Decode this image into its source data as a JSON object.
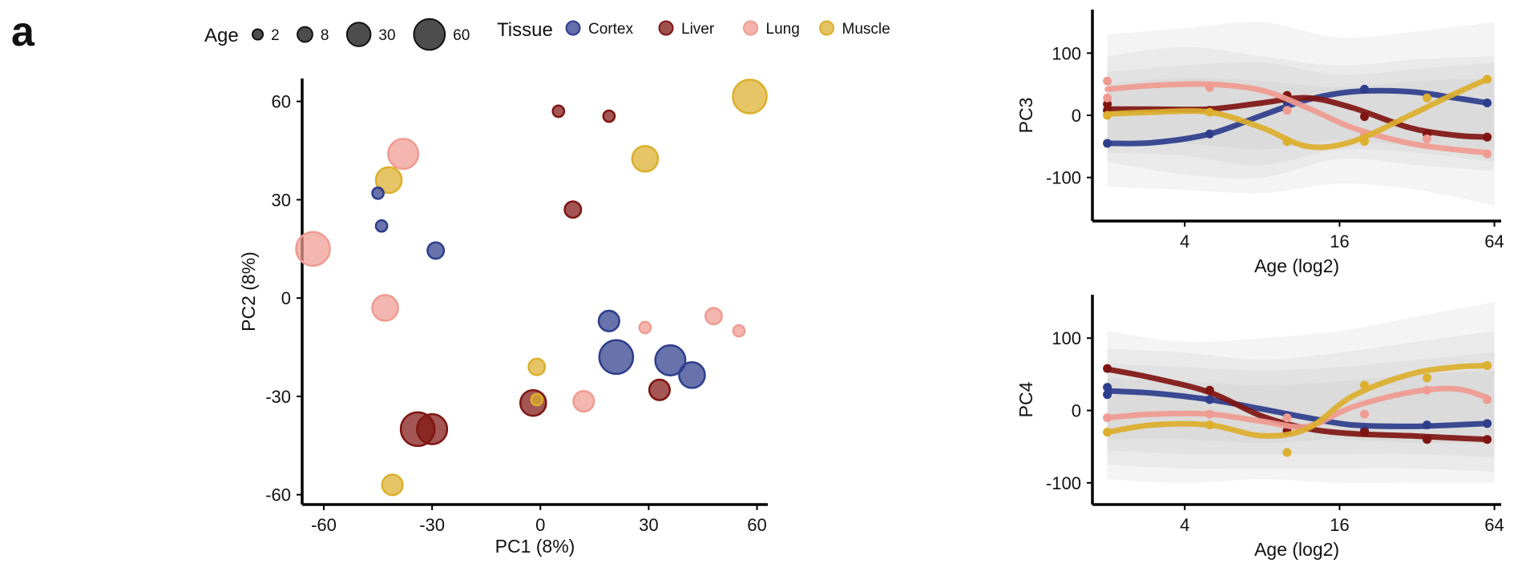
{
  "panel_label": "a",
  "legend": {
    "age_title": "Age",
    "age_sizes": [
      {
        "label": "2",
        "value": 2
      },
      {
        "label": "8",
        "value": 8
      },
      {
        "label": "30",
        "value": 30
      },
      {
        "label": "60",
        "value": 60
      }
    ],
    "tissue_title": "Tissue",
    "tissues": [
      {
        "name": "Cortex",
        "color": "#2e3d8c"
      },
      {
        "name": "Liver",
        "color": "#7f1512"
      },
      {
        "name": "Lung",
        "color": "#f09b91"
      },
      {
        "name": "Muscle",
        "color": "#dcaf2c"
      }
    ]
  },
  "chart_data": [
    {
      "type": "scatter",
      "xlabel": "PC1 (8%)",
      "ylabel": "PC2 (8%)",
      "xlim": [
        -66,
        63
      ],
      "ylim": [
        -63,
        67
      ],
      "xticks": [
        -60,
        -30,
        0,
        30,
        60
      ],
      "yticks": [
        -60,
        -30,
        0,
        30,
        60
      ],
      "grid": false,
      "legend_position": "top",
      "points": [
        {
          "tissue": "Cortex",
          "age": 2,
          "x": -45,
          "y": 32
        },
        {
          "tissue": "Cortex",
          "age": 2,
          "x": -44,
          "y": 22
        },
        {
          "tissue": "Cortex",
          "age": 8,
          "x": -29,
          "y": 14.5
        },
        {
          "tissue": "Cortex",
          "age": 16,
          "x": 19,
          "y": -7
        },
        {
          "tissue": "Cortex",
          "age": 60,
          "x": 21,
          "y": -18
        },
        {
          "tissue": "Cortex",
          "age": 45,
          "x": 36,
          "y": -19
        },
        {
          "tissue": "Cortex",
          "age": 30,
          "x": 42,
          "y": -23.5
        },
        {
          "tissue": "Liver",
          "age": 2,
          "x": 5,
          "y": 57
        },
        {
          "tissue": "Liver",
          "age": 2,
          "x": 19,
          "y": 55.5
        },
        {
          "tissue": "Liver",
          "age": 8,
          "x": 9,
          "y": 27
        },
        {
          "tissue": "Liver",
          "age": 16,
          "x": 33,
          "y": -28
        },
        {
          "tissue": "Liver",
          "age": 30,
          "x": -2,
          "y": -32
        },
        {
          "tissue": "Liver",
          "age": 60,
          "x": -34,
          "y": -40
        },
        {
          "tissue": "Liver",
          "age": 45,
          "x": -30,
          "y": -40
        },
        {
          "tissue": "Lung",
          "age": 45,
          "x": -38,
          "y": 44
        },
        {
          "tissue": "Lung",
          "age": 60,
          "x": -63,
          "y": 15
        },
        {
          "tissue": "Lung",
          "age": 30,
          "x": -43,
          "y": -3
        },
        {
          "tissue": "Lung",
          "age": 2,
          "x": 29,
          "y": -9
        },
        {
          "tissue": "Lung",
          "age": 8,
          "x": 48,
          "y": -5.5
        },
        {
          "tissue": "Lung",
          "age": 2,
          "x": 55,
          "y": -10
        },
        {
          "tissue": "Lung",
          "age": 16,
          "x": 12,
          "y": -31.5
        },
        {
          "tissue": "Muscle",
          "age": 60,
          "x": 58,
          "y": 61.5
        },
        {
          "tissue": "Muscle",
          "age": 30,
          "x": 29,
          "y": 42.5
        },
        {
          "tissue": "Muscle",
          "age": 30,
          "x": -42,
          "y": 36
        },
        {
          "tissue": "Muscle",
          "age": 8,
          "x": -1,
          "y": -21
        },
        {
          "tissue": "Muscle",
          "age": 2,
          "x": -1,
          "y": -31
        },
        {
          "tissue": "Muscle",
          "age": 16,
          "x": -41,
          "y": -57
        }
      ]
    },
    {
      "type": "line",
      "xlabel": "Age (log2)",
      "ylabel": "PC3",
      "x_scale": "log2",
      "xlim": [
        1.75,
        68
      ],
      "ylim": [
        -170,
        170
      ],
      "xticks": [
        4,
        16,
        64
      ],
      "yticks": [
        -100,
        0,
        100
      ],
      "grid": false,
      "bands": [
        {
          "x": [
            2,
            4,
            8,
            16,
            32,
            64
          ],
          "upper": [
            130,
            140,
            150,
            125,
            135,
            150
          ],
          "lower": [
            -115,
            -120,
            -125,
            -110,
            -120,
            -145
          ]
        },
        {
          "x": [
            2,
            4,
            8,
            16,
            32,
            64
          ],
          "upper": [
            95,
            110,
            95,
            80,
            90,
            95
          ],
          "lower": [
            -75,
            -95,
            -100,
            -70,
            -80,
            -90
          ]
        },
        {
          "x": [
            2,
            4,
            8,
            16,
            32,
            64
          ],
          "upper": [
            70,
            80,
            85,
            65,
            75,
            85
          ],
          "lower": [
            -60,
            -65,
            -80,
            -55,
            -60,
            -75
          ]
        },
        {
          "x": [
            2,
            4,
            8,
            16,
            32,
            64
          ],
          "upper": [
            50,
            60,
            55,
            45,
            55,
            60
          ],
          "lower": [
            -40,
            -45,
            -55,
            -40,
            -50,
            -55
          ]
        }
      ],
      "series": [
        {
          "name": "Cortex",
          "x": [
            2,
            3,
            5,
            8,
            12,
            18,
            30,
            45,
            60
          ],
          "y": [
            -45,
            -44,
            -30,
            0,
            25,
            38,
            38,
            28,
            20
          ],
          "points_x": [
            2,
            5,
            10,
            20,
            60
          ],
          "points_y": [
            -45,
            -30,
            22,
            42,
            20
          ]
        },
        {
          "name": "Liver",
          "x": [
            2,
            3,
            5,
            8,
            12,
            18,
            30,
            45,
            60
          ],
          "y": [
            10,
            10,
            10,
            20,
            28,
            12,
            -20,
            -32,
            -35
          ],
          "points_x": [
            2,
            2,
            5,
            10,
            20,
            35,
            60
          ],
          "points_y": [
            18,
            8,
            8,
            32,
            -2,
            -30,
            -35
          ]
        },
        {
          "name": "Lung",
          "x": [
            2,
            3,
            5,
            8,
            12,
            18,
            30,
            45,
            60
          ],
          "y": [
            42,
            48,
            50,
            40,
            12,
            -20,
            -45,
            -55,
            -60
          ],
          "points_x": [
            2,
            2,
            5,
            10,
            20,
            35,
            60
          ],
          "points_y": [
            55,
            28,
            45,
            8,
            -32,
            -38,
            -62
          ]
        },
        {
          "name": "Muscle",
          "x": [
            2,
            3,
            5,
            8,
            12,
            18,
            30,
            45,
            60
          ],
          "y": [
            2,
            5,
            5,
            -20,
            -50,
            -42,
            0,
            35,
            58
          ],
          "points_x": [
            2,
            5,
            10,
            20,
            35,
            60
          ],
          "points_y": [
            0,
            5,
            -42,
            -42,
            28,
            58
          ]
        }
      ]
    },
    {
      "type": "line",
      "xlabel": "Age (log2)",
      "ylabel": "PC4",
      "x_scale": "log2",
      "xlim": [
        1.75,
        68
      ],
      "ylim": [
        -130,
        160
      ],
      "xticks": [
        4,
        16,
        64
      ],
      "yticks": [
        -100,
        0,
        100
      ],
      "grid": false,
      "bands": [
        {
          "x": [
            2,
            4,
            8,
            16,
            32,
            64
          ],
          "upper": [
            110,
            95,
            100,
            110,
            130,
            150
          ],
          "lower": [
            -95,
            -100,
            -95,
            -100,
            -100,
            -100
          ]
        },
        {
          "x": [
            2,
            4,
            8,
            16,
            32,
            64
          ],
          "upper": [
            85,
            80,
            70,
            80,
            95,
            110
          ],
          "lower": [
            -75,
            -80,
            -80,
            -80,
            -80,
            -85
          ]
        },
        {
          "x": [
            2,
            4,
            8,
            16,
            32,
            64
          ],
          "upper": [
            65,
            60,
            55,
            60,
            70,
            80
          ],
          "lower": [
            -55,
            -60,
            -60,
            -60,
            -60,
            -65
          ]
        },
        {
          "x": [
            2,
            4,
            8,
            16,
            32,
            64
          ],
          "upper": [
            45,
            40,
            35,
            40,
            50,
            55
          ],
          "lower": [
            -40,
            -40,
            -45,
            -40,
            -45,
            -45
          ]
        }
      ],
      "series": [
        {
          "name": "Cortex",
          "x": [
            2,
            3,
            5,
            8,
            12,
            18,
            30,
            45,
            60
          ],
          "y": [
            27,
            24,
            15,
            2,
            -10,
            -20,
            -22,
            -20,
            -18
          ],
          "points_x": [
            2,
            2,
            5,
            10,
            20,
            35,
            60
          ],
          "points_y": [
            32,
            22,
            15,
            -8,
            -28,
            -20,
            -18
          ]
        },
        {
          "name": "Liver",
          "x": [
            2,
            3,
            5,
            8,
            12,
            18,
            30,
            45,
            60
          ],
          "y": [
            57,
            45,
            25,
            -8,
            -25,
            -32,
            -35,
            -38,
            -40
          ],
          "points_x": [
            2,
            5,
            10,
            20,
            35,
            60
          ],
          "points_y": [
            58,
            28,
            -28,
            -30,
            -40,
            -40
          ]
        },
        {
          "name": "Lung",
          "x": [
            2,
            3,
            5,
            8,
            12,
            18,
            30,
            45,
            60
          ],
          "y": [
            -10,
            -5,
            -5,
            -15,
            -22,
            5,
            25,
            30,
            18
          ],
          "points_x": [
            2,
            5,
            10,
            20,
            35,
            60
          ],
          "points_y": [
            -10,
            -5,
            -10,
            -5,
            28,
            15
          ]
        },
        {
          "name": "Muscle",
          "x": [
            2,
            3,
            5,
            8,
            12,
            18,
            30,
            45,
            60
          ],
          "y": [
            -30,
            -20,
            -20,
            -35,
            -25,
            20,
            50,
            60,
            62
          ],
          "points_x": [
            2,
            5,
            10,
            20,
            35,
            60
          ],
          "points_y": [
            -30,
            -20,
            -58,
            35,
            45,
            62
          ]
        }
      ]
    }
  ]
}
